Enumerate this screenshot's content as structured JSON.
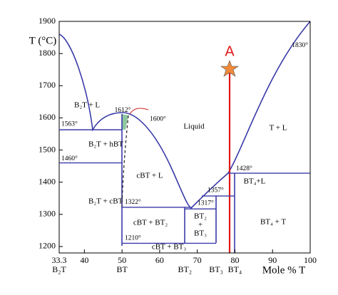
{
  "chart_data": {
    "type": "phase",
    "ylabel": "T (°C)",
    "xlabel": "Mole % T",
    "xlim": [
      33.3,
      100
    ],
    "ylim": [
      1180,
      1900
    ],
    "xticks": [
      33.3,
      40,
      50,
      60,
      70,
      80,
      90,
      100
    ],
    "yticks": [
      1200,
      1300,
      1400,
      1500,
      1600,
      1700,
      1800,
      1900
    ],
    "compounds": [
      {
        "value": 33.3,
        "label": "B₂T"
      },
      {
        "value": 50,
        "label": "BT"
      },
      {
        "value": 66.7,
        "label": "BT₂"
      },
      {
        "value": 75,
        "label": "BT₃"
      },
      {
        "value": 80,
        "label": "BT₄"
      }
    ],
    "isotherms": [
      {
        "value": 1563,
        "label": "1563°"
      },
      {
        "value": 1460,
        "label": "1460°"
      },
      {
        "value": 1322,
        "label": "1322°"
      },
      {
        "value": 1317,
        "label": "1317°"
      },
      {
        "value": 1210,
        "label": "1210°"
      },
      {
        "value": 1428,
        "label": "1428°"
      },
      {
        "value": 1357,
        "label": "1357°"
      }
    ],
    "peaks": [
      {
        "value": 1612,
        "label": "1612°"
      },
      {
        "value": 1600,
        "label": "1600°"
      },
      {
        "value": 1830,
        "label": "1830°"
      }
    ],
    "regions": [
      "B₂T + L",
      "B₂T + hBT",
      "B₂T + cBT",
      "cBT + L",
      "Liquid",
      "T + L",
      "cBT + BT₂",
      "BT₂",
      "+",
      "BT₃",
      "cBT + BT₃",
      "BT₄+L",
      "BT₄ + T"
    ],
    "annotation": "A"
  }
}
